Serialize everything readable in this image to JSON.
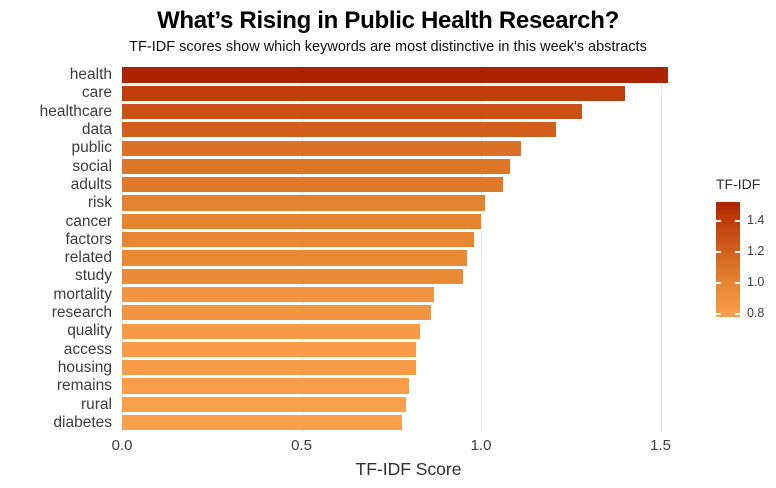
{
  "chart_data": {
    "type": "bar",
    "orientation": "horizontal",
    "title": "What’s Rising in Public Health Research?",
    "subtitle": "TF-IDF scores show which keywords are most distinctive in this week's abstracts",
    "xlabel": "TF-IDF Score",
    "categories": [
      "health",
      "care",
      "healthcare",
      "data",
      "public",
      "social",
      "adults",
      "risk",
      "cancer",
      "factors",
      "related",
      "study",
      "mortality",
      "research",
      "quality",
      "access",
      "housing",
      "remains",
      "rural",
      "diabetes"
    ],
    "values": [
      1.52,
      1.4,
      1.28,
      1.21,
      1.11,
      1.08,
      1.06,
      1.01,
      1.0,
      0.98,
      0.96,
      0.95,
      0.87,
      0.86,
      0.83,
      0.82,
      0.82,
      0.8,
      0.79,
      0.78
    ],
    "xlim": [
      0,
      1.596
    ],
    "xticks": [
      0.0,
      0.5,
      1.0,
      1.5
    ],
    "xtick_labels": [
      "0.0",
      "0.5",
      "1.0",
      "1.5"
    ],
    "grid": "vertical-major-only",
    "background": "#ffffff",
    "gridline_color": "#e6e6e6",
    "color_stops": [
      [
        0.78,
        "#F9A04B"
      ],
      [
        1.0,
        "#E6842F"
      ],
      [
        1.2,
        "#D2601E"
      ],
      [
        1.4,
        "#BF3E0A"
      ],
      [
        1.52,
        "#AC2301"
      ]
    ],
    "legend": {
      "title": "TF-IDF",
      "position": "right",
      "min": 0.78,
      "max": 1.52,
      "ticks": [
        1.4,
        1.2,
        1.0,
        0.8
      ],
      "tick_labels": [
        "1.4",
        "1.2",
        "1.0",
        "0.8"
      ]
    }
  }
}
